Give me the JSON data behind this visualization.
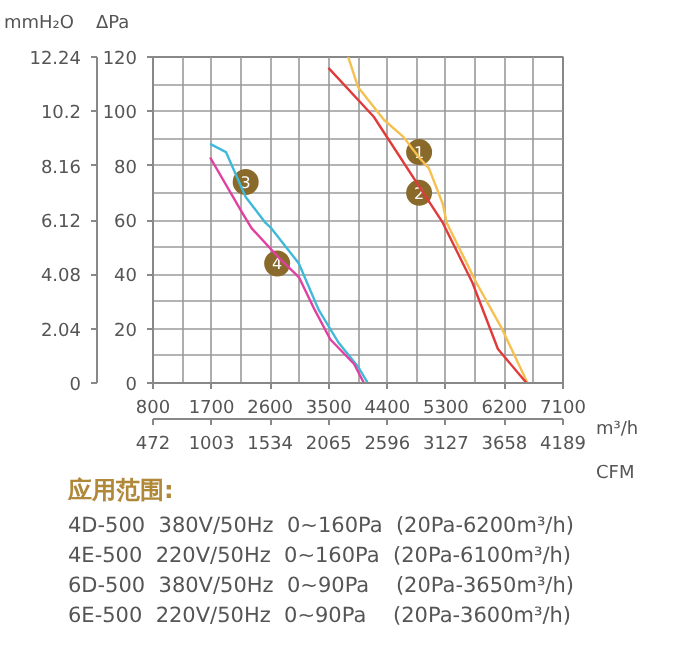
{
  "chart_data": {
    "type": "line",
    "xlabel": "m³/h",
    "x2label": "CFM",
    "ylabel": "ΔPa",
    "y2label": "mmH₂O",
    "xlim": [
      800,
      7100
    ],
    "xticks": [
      800,
      1700,
      2600,
      3500,
      4400,
      5300,
      6200,
      7100
    ],
    "x2lim": [
      472,
      4189
    ],
    "x2ticks": [
      472,
      1003,
      1534,
      2065,
      2596,
      3127,
      3658,
      4189
    ],
    "ylim": [
      0,
      120
    ],
    "yticks": [
      0,
      20,
      40,
      60,
      80,
      100,
      120
    ],
    "y2lim": [
      0,
      12.24
    ],
    "y2ticks": [
      0,
      2.04,
      4.08,
      6.12,
      8.16,
      10.2,
      12.24
    ],
    "grid": true,
    "marker": "none",
    "line_style": "solid",
    "series": [
      {
        "color": "#f5c050",
        "x": [
          3799,
          3950,
          4344,
          4647,
          4889,
          5040,
          5252,
          5313,
          5767,
          6161,
          6555
        ],
        "values": [
          120,
          109,
          97,
          90.6,
          83,
          79,
          66,
          59,
          37,
          20,
          0
        ]
      },
      {
        "color": "#e03a3a",
        "x": [
          3496,
          4192,
          5252,
          5707,
          6100,
          6540
        ],
        "values": [
          116,
          98,
          59,
          37,
          12.5,
          0
        ]
      },
      {
        "color": "#40b8d8",
        "x": [
          1678,
          1921,
          2224,
          2526,
          2617,
          3041,
          3344,
          3647,
          3950,
          4101
        ],
        "values": [
          88,
          85,
          68.5,
          59,
          57,
          44,
          27,
          15,
          6,
          0
        ]
      },
      {
        "color": "#e040a0",
        "x": [
          1678,
          2163,
          2314,
          2738,
          3041,
          3283,
          3526,
          3890,
          4041
        ],
        "values": [
          83,
          63,
          57,
          46,
          39,
          27,
          16,
          7,
          0
        ]
      }
    ],
    "annotations": [
      {
        "text": "1",
        "x": 4889,
        "y": 85
      },
      {
        "text": "2",
        "x": 4889,
        "y": 70
      },
      {
        "text": "3",
        "x": 2224,
        "y": 74
      },
      {
        "text": "4",
        "x": 2708,
        "y": 44
      },
      "应用范围:",
      "4D-500  380V/50Hz  0~160Pa   (20Pa-6200m³/h)",
      "4E-500  220V/50Hz  0~160Pa   (20Pa-6100m³/h)",
      "6D-500  380V/50Hz  0~90Pa     (20Pa-3650m³/h)",
      "6E-500  220V/50Hz  0~90Pa     (20Pa-3600m³/h)"
    ]
  }
}
